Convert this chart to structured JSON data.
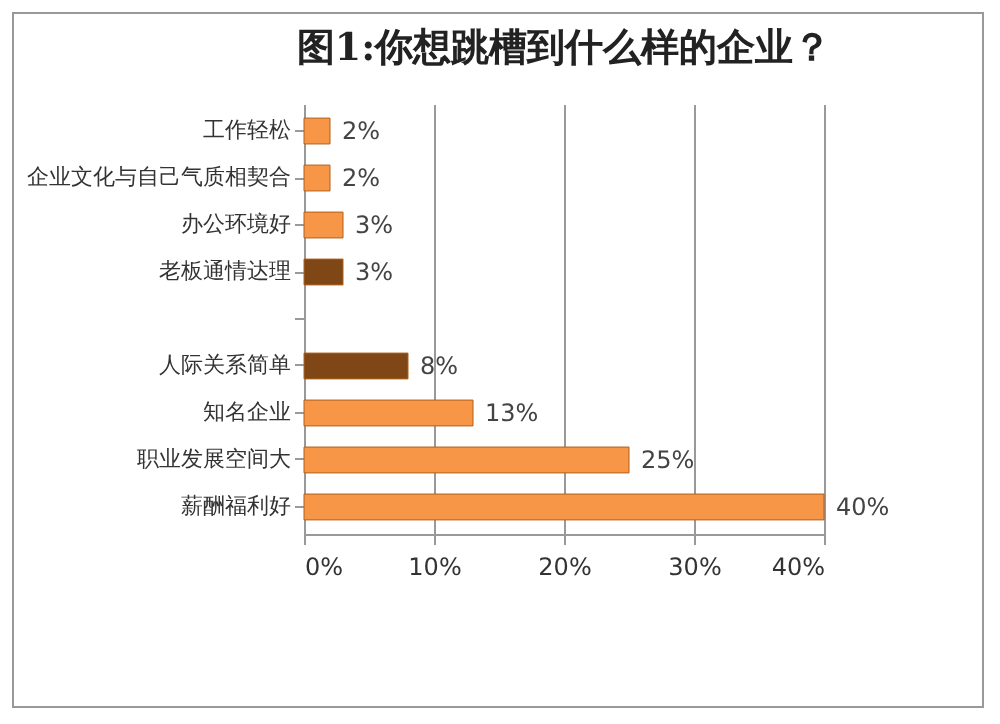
{
  "chart_data": {
    "type": "bar",
    "orientation": "horizontal",
    "title": "图1:你想跳槽到什么样的企业？",
    "categories": [
      "工作轻松",
      "企业文化与自己气质相契合",
      "办公环境好",
      "老板通情达理",
      null,
      "人际关系简单",
      "知名企业",
      "职业发展空间大",
      "薪酬福利好"
    ],
    "values": [
      2,
      2,
      3,
      3,
      null,
      8,
      13,
      25,
      40
    ],
    "colors": [
      "#f79646",
      "#f79646",
      "#f79646",
      "#7f4715",
      null,
      "#7f4715",
      "#f79646",
      "#f79646",
      "#f79646"
    ],
    "value_labels": [
      "2%",
      "2%",
      "3%",
      "3%",
      null,
      "8%",
      "13%",
      "25%",
      "40%"
    ],
    "xlim": [
      0,
      40
    ],
    "xticks": [
      {
        "value": 0,
        "label": "0%"
      },
      {
        "value": 10,
        "label": "10%"
      },
      {
        "value": 20,
        "label": "20%"
      },
      {
        "value": 30,
        "label": "30%"
      },
      {
        "value": 40,
        "label": "40%"
      }
    ],
    "grid": "x"
  }
}
